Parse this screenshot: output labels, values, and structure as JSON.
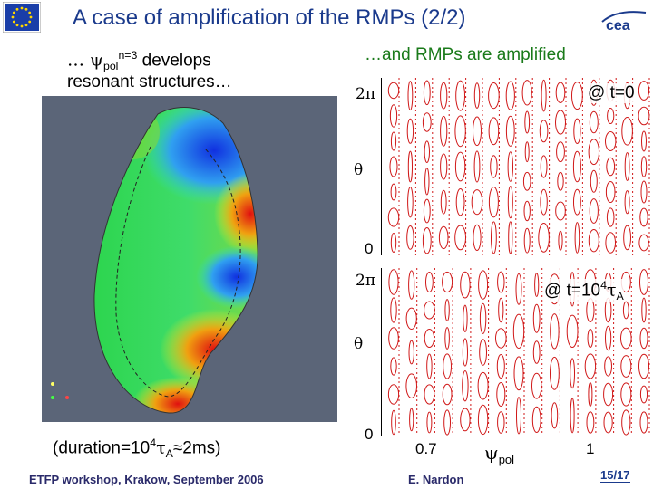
{
  "header": {
    "title": "A case of amplification of the RMPs (2/2)",
    "left_logo": "eu-flag-icon",
    "right_logo": "cea-logo-icon"
  },
  "left": {
    "line1_prefix": "… ψ",
    "line1_sub": "pol",
    "line1_sup": "n=3",
    "line1_suffix": " develops",
    "line2": "resonant structures…",
    "duration_prefix": "(duration=10",
    "duration_sup": "4",
    "duration_tau": "τ",
    "duration_sub": "A",
    "duration_suffix": "≈2ms)"
  },
  "right": {
    "caption": "…and RMPs are amplified",
    "top_plot": {
      "y_max": "2π",
      "y_mid": "θ",
      "y_min": "0",
      "label": "@ t=0"
    },
    "bottom_plot": {
      "y_max": "2π",
      "y_mid": "θ",
      "y_min": "0",
      "label_prefix": "@ t=10",
      "label_sup": "4",
      "label_tau": "τ",
      "label_sub": "A",
      "x_min": "0.7",
      "x_mid_symbol": "ψ",
      "x_mid_sub": "pol",
      "x_max": "1"
    }
  },
  "footer": {
    "left": "ETFP workshop, Krakow, September 2006",
    "center": "E. Nardon",
    "page": "15/17"
  },
  "colors": {
    "title": "#1a3a8c",
    "caption_green": "#1a7a1a",
    "panel_bg": "#5b6578",
    "poincare": "#d01818"
  }
}
